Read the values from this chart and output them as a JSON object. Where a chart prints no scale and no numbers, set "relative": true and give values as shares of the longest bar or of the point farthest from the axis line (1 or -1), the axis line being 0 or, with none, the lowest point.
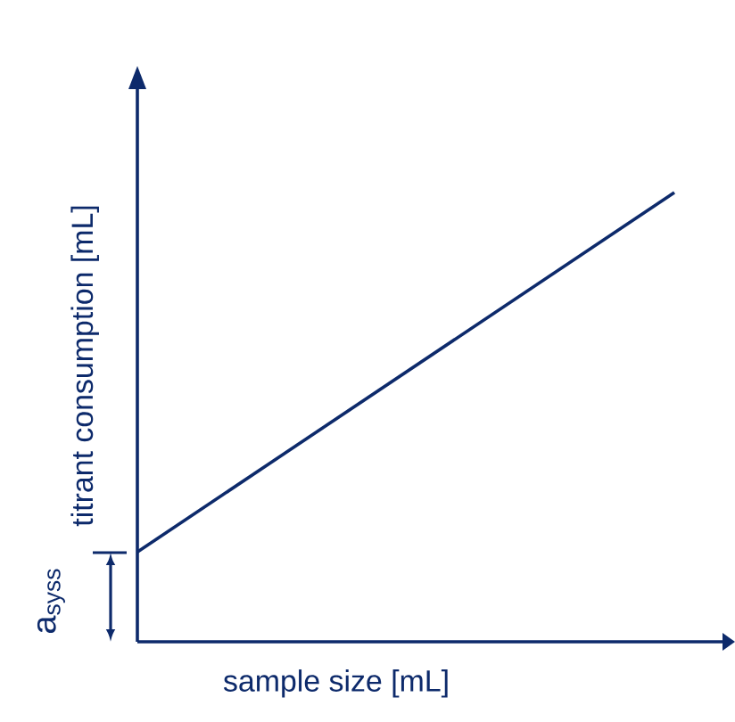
{
  "chart_data": {
    "type": "line",
    "relative": true,
    "xlabel": "sample size [mL]",
    "ylabel": "titrant consumption [mL]",
    "categories": [
      null,
      null
    ],
    "series": [
      {
        "color": "#0d2a6b",
        "values": [
          0.2,
          1
        ]
      }
    ],
    "marker": "none",
    "annotations": [
      "a$_{syss}$"
    ]
  }
}
